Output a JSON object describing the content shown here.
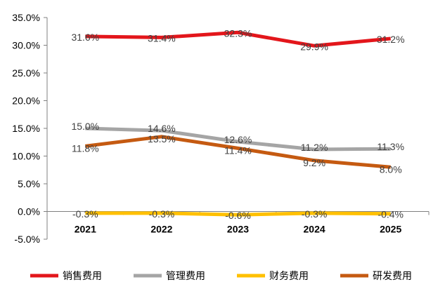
{
  "chart_data": {
    "type": "line",
    "title": "",
    "xlabel": "",
    "ylabel": "",
    "categories": [
      "2021",
      "2022",
      "2023",
      "2024",
      "2025"
    ],
    "ylim": [
      -5,
      35
    ],
    "ytick_step": 5,
    "ytick_labels": [
      "-5.0%",
      "0.0%",
      "5.0%",
      "10.0%",
      "15.0%",
      "20.0%",
      "25.0%",
      "30.0%",
      "35.0%"
    ],
    "grid": false,
    "legend_position": "bottom",
    "series": [
      {
        "name": "销售费用",
        "color": "#e3161b",
        "values": [
          31.6,
          31.4,
          32.3,
          29.9,
          31.2
        ],
        "labels": [
          "31.6%",
          "31.4%",
          "32.3%",
          "29.9%",
          "31.2%"
        ]
      },
      {
        "name": "管理费用",
        "color": "#a5a5a5",
        "values": [
          15.0,
          14.6,
          12.6,
          11.2,
          11.3
        ],
        "labels": [
          "15.0%",
          "14.6%",
          "12.6%",
          "11.2%",
          "11.3%"
        ]
      },
      {
        "name": "财务费用",
        "color": "#ffc000",
        "values": [
          -0.3,
          -0.3,
          -0.6,
          -0.3,
          -0.4
        ],
        "labels": [
          "-0.3%",
          "-0.3%",
          "-0.6%",
          "-0.3%",
          "-0.4%"
        ]
      },
      {
        "name": "研发费用",
        "color": "#c55a11",
        "values": [
          11.8,
          13.5,
          11.4,
          9.2,
          8.0
        ],
        "labels": [
          "11.8%",
          "13.5%",
          "11.4%",
          "9.2%",
          "8.0%"
        ]
      }
    ]
  }
}
